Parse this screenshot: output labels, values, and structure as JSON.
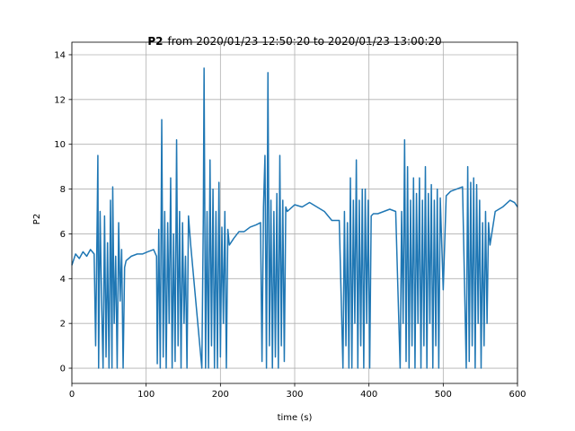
{
  "chart_data": {
    "type": "line",
    "title_bold": "P2",
    "title": "from 2020/01/23 12:50:20 to 2020/01/23 13:00:20",
    "xlabel": "time (s)",
    "ylabel": "P2",
    "xlim": [
      0,
      600
    ],
    "ylim": [
      -0.68,
      14.56
    ],
    "xticks": [
      0,
      100,
      200,
      300,
      400,
      500,
      600
    ],
    "yticks": [
      0,
      2,
      4,
      6,
      8,
      10,
      12,
      14
    ],
    "grid": true,
    "x": [
      0,
      5,
      10,
      15,
      20,
      25,
      30,
      32,
      34,
      35,
      36,
      38,
      40,
      42,
      44,
      46,
      48,
      50,
      52,
      54,
      55,
      57,
      59,
      61,
      63,
      65,
      67,
      69,
      71,
      73,
      80,
      88,
      95,
      102,
      110,
      114,
      115,
      117,
      119,
      121,
      123,
      125,
      127,
      129,
      131,
      133,
      135,
      137,
      139,
      141,
      143,
      145,
      147,
      149,
      151,
      153,
      155,
      157,
      160,
      175,
      177,
      178,
      180,
      182,
      184,
      186,
      188,
      190,
      192,
      194,
      196,
      198,
      200,
      202,
      204,
      206,
      208,
      210,
      212,
      218,
      225,
      232,
      240,
      248,
      254,
      256,
      258,
      260,
      262,
      264,
      266,
      268,
      270,
      272,
      274,
      276,
      278,
      280,
      282,
      284,
      286,
      288,
      290,
      300,
      310,
      320,
      330,
      340,
      350,
      360,
      365,
      367,
      369,
      371,
      373,
      375,
      377,
      379,
      381,
      383,
      385,
      387,
      389,
      391,
      393,
      395,
      397,
      399,
      401,
      403,
      406,
      412,
      420,
      428,
      436,
      442,
      444,
      446,
      448,
      450,
      452,
      454,
      456,
      458,
      460,
      462,
      464,
      466,
      468,
      470,
      472,
      474,
      476,
      478,
      480,
      482,
      484,
      486,
      488,
      490,
      492,
      494,
      496,
      500,
      504,
      510,
      518,
      526,
      531,
      533,
      535,
      537,
      539,
      541,
      543,
      545,
      547,
      549,
      551,
      553,
      555,
      557,
      559,
      561,
      563,
      570,
      580,
      590,
      596,
      600
    ],
    "series": [
      {
        "name": "P2",
        "color": "#1f77b4",
        "values": [
          4.6,
          5.1,
          4.9,
          5.2,
          5.0,
          5.3,
          5.1,
          1.0,
          6.5,
          9.5,
          0,
          7,
          3,
          0,
          6.8,
          0.5,
          5.6,
          0,
          7.5,
          0,
          8.1,
          2,
          5,
          0,
          6.5,
          3,
          5.3,
          0,
          4.5,
          4.8,
          5.0,
          5.1,
          5.1,
          5.2,
          5.3,
          5.0,
          0.2,
          6.2,
          0,
          11.1,
          0.5,
          7,
          0,
          6.5,
          2,
          8.5,
          0,
          6,
          0.3,
          10.2,
          1,
          7,
          0,
          6.5,
          2,
          5,
          0,
          6.8,
          5.5,
          0,
          6.8,
          13.4,
          0,
          7,
          0,
          9.3,
          1,
          8,
          0,
          7,
          0,
          8.3,
          0.5,
          6.3,
          2,
          7,
          0,
          6.2,
          5.5,
          5.8,
          6.1,
          6.1,
          6.3,
          6.4,
          6.5,
          0.3,
          7.2,
          9.5,
          0,
          13.2,
          1,
          7.5,
          0,
          7,
          0.5,
          7.8,
          0,
          9.5,
          1,
          7.5,
          0.3,
          7.2,
          7.0,
          7.3,
          7.2,
          7.4,
          7.2,
          7.0,
          6.6,
          6.6,
          0,
          7,
          1,
          6.5,
          0,
          8.5,
          0,
          7.5,
          2,
          9.3,
          0,
          7.5,
          1,
          8,
          0,
          8,
          2,
          7.5,
          0,
          6.8,
          6.9,
          6.9,
          7.0,
          7.1,
          7.0,
          0,
          7,
          2,
          10.2,
          0.3,
          9,
          0,
          7.5,
          1,
          8.5,
          0,
          7.8,
          2,
          8.5,
          0,
          7.5,
          1,
          9,
          0,
          7.8,
          2,
          8.2,
          0,
          7.5,
          1,
          8,
          0,
          7.6,
          3.5,
          7.7,
          7.9,
          8.0,
          8.1,
          0,
          9,
          0.3,
          8.3,
          1,
          8.5,
          0,
          8.2,
          2,
          7.5,
          0,
          6.5,
          1,
          7,
          2,
          6.5,
          5.5,
          7.0,
          7.2,
          7.5,
          7.4,
          7.2
        ]
      }
    ]
  }
}
